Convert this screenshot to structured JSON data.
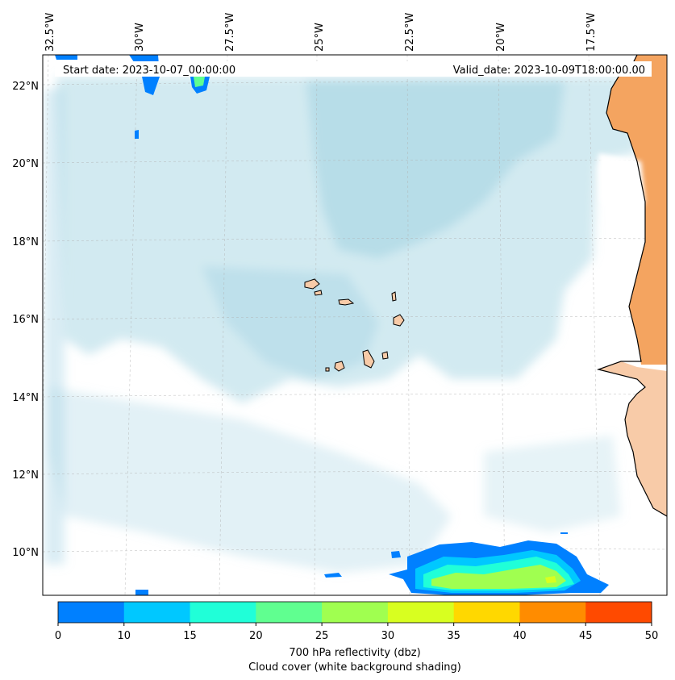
{
  "map": {
    "start_date": "Start date: 2023-10-07_00:00:00",
    "valid_date": "Valid_date: 2023-10-09T18:00:00.00",
    "lon_labels": [
      "32.5°W",
      "30°W",
      "27.5°W",
      "25°W",
      "22.5°W",
      "20°W",
      "17.5°W"
    ],
    "lat_labels": [
      "22°N",
      "20°N",
      "18°N",
      "16°N",
      "14°N",
      "12°N",
      "10°N"
    ],
    "colorbar": {
      "label": "700 hPa reflectivity (dbz)",
      "sublabel": "Cloud cover (white background shading)",
      "ticks": [
        "0",
        "10",
        "15",
        "20",
        "25",
        "30",
        "35",
        "40",
        "45",
        "50"
      ],
      "colors": [
        "#0080ff",
        "#00c8ff",
        "#20ffd8",
        "#60ff90",
        "#a0ff50",
        "#d8ff20",
        "#ffd800",
        "#ff8c00",
        "#ff4a00"
      ]
    },
    "colors": {
      "cloud": "#add8e6",
      "land": "#f4a460",
      "land_light": "#f8cba8",
      "gridline": "#b0b0b0",
      "coast": "#000000"
    }
  }
}
